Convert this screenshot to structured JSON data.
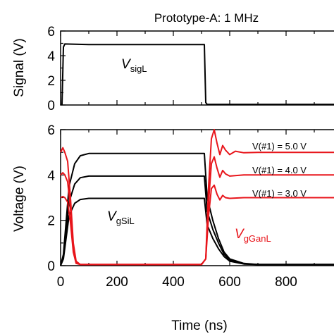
{
  "chart_data": [
    {
      "type": "line",
      "title": "Prototype-A: 1 MHz",
      "xlabel": "",
      "ylabel": "Signal (V)",
      "xlim": [
        0,
        1000
      ],
      "ylim": [
        0,
        6
      ],
      "yticks": [
        "0",
        "2",
        "4",
        "6"
      ],
      "xticks": [
        0,
        200,
        400,
        600,
        800,
        1000
      ],
      "series": [
        {
          "label_main": "V",
          "label_sub": "sigL",
          "color": "#000000",
          "points": [
            [
              0,
              0
            ],
            [
              5,
              0.05
            ],
            [
              10,
              4.7
            ],
            [
              15,
              4.95
            ],
            [
              100,
              4.9
            ],
            [
              200,
              4.9
            ],
            [
              300,
              4.9
            ],
            [
              400,
              4.9
            ],
            [
              500,
              4.9
            ],
            [
              510,
              4.9
            ],
            [
              515,
              0.2
            ],
            [
              520,
              0.05
            ],
            [
              600,
              0.05
            ],
            [
              700,
              0.05
            ],
            [
              800,
              0.05
            ],
            [
              900,
              0.05
            ],
            [
              1000,
              0.05
            ]
          ]
        }
      ]
    },
    {
      "type": "line",
      "title": "",
      "xlabel": "Time (ns)",
      "ylabel": "Voltage (V)",
      "xlim": [
        0,
        1000
      ],
      "ylim": [
        0,
        6
      ],
      "yticks": [
        "0",
        "2",
        "4",
        "6"
      ],
      "xticks": [
        "0",
        "200",
        "400",
        "600",
        "800",
        "10"
      ],
      "annotations": [
        "V(#1) = 5.0 V",
        "V(#1) = 4.0 V",
        "V(#1) = 3.0 V"
      ],
      "labels": [
        {
          "main": "V",
          "sub": "gSiL",
          "color": "#000000"
        },
        {
          "main": "V",
          "sub": "gGanL",
          "color": "#e8151b"
        }
      ],
      "series": [
        {
          "group": "gSiL",
          "color": "#000000",
          "points": [
            [
              0,
              0
            ],
            [
              10,
              0.5
            ],
            [
              30,
              3.5
            ],
            [
              50,
              4.5
            ],
            [
              70,
              4.85
            ],
            [
              100,
              4.95
            ],
            [
              200,
              4.95
            ],
            [
              300,
              4.95
            ],
            [
              400,
              4.95
            ],
            [
              510,
              4.95
            ],
            [
              520,
              3.0
            ],
            [
              540,
              2.0
            ],
            [
              560,
              1.2
            ],
            [
              580,
              0.6
            ],
            [
              600,
              0.3
            ],
            [
              650,
              0.1
            ],
            [
              700,
              0.05
            ],
            [
              1000,
              0.05
            ]
          ]
        },
        {
          "group": "gSiL",
          "color": "#000000",
          "points": [
            [
              0,
              0
            ],
            [
              10,
              0.4
            ],
            [
              30,
              2.8
            ],
            [
              50,
              3.6
            ],
            [
              70,
              3.88
            ],
            [
              100,
              3.95
            ],
            [
              200,
              3.95
            ],
            [
              300,
              3.95
            ],
            [
              400,
              3.95
            ],
            [
              510,
              3.95
            ],
            [
              520,
              2.4
            ],
            [
              540,
              1.6
            ],
            [
              560,
              1.0
            ],
            [
              580,
              0.5
            ],
            [
              600,
              0.25
            ],
            [
              650,
              0.08
            ],
            [
              700,
              0.05
            ],
            [
              1000,
              0.05
            ]
          ]
        },
        {
          "group": "gSiL",
          "color": "#000000",
          "points": [
            [
              0,
              0
            ],
            [
              10,
              0.3
            ],
            [
              30,
              2.2
            ],
            [
              50,
              2.75
            ],
            [
              70,
              2.92
            ],
            [
              100,
              2.97
            ],
            [
              200,
              2.97
            ],
            [
              300,
              2.97
            ],
            [
              400,
              2.97
            ],
            [
              510,
              2.97
            ],
            [
              520,
              1.8
            ],
            [
              540,
              1.2
            ],
            [
              560,
              0.75
            ],
            [
              580,
              0.4
            ],
            [
              600,
              0.2
            ],
            [
              650,
              0.07
            ],
            [
              700,
              0.05
            ],
            [
              1000,
              0.05
            ]
          ]
        },
        {
          "group": "gGanL",
          "color": "#e8151b",
          "points": [
            [
              0,
              5.0
            ],
            [
              8,
              5.2
            ],
            [
              15,
              5.0
            ],
            [
              25,
              4.6
            ],
            [
              35,
              3.0
            ],
            [
              45,
              1.0
            ],
            [
              55,
              0.2
            ],
            [
              70,
              0.05
            ],
            [
              200,
              0.05
            ],
            [
              400,
              0.05
            ],
            [
              500,
              0.05
            ],
            [
              515,
              0.3
            ],
            [
              525,
              3.5
            ],
            [
              535,
              5.6
            ],
            [
              545,
              6.0
            ],
            [
              555,
              5.4
            ],
            [
              565,
              4.9
            ],
            [
              575,
              5.3
            ],
            [
              585,
              5.1
            ],
            [
              600,
              4.9
            ],
            [
              620,
              5.05
            ],
            [
              650,
              4.98
            ],
            [
              700,
              5.0
            ],
            [
              800,
              5.0
            ],
            [
              900,
              5.0
            ],
            [
              1000,
              5.0
            ]
          ]
        },
        {
          "group": "gGanL",
          "color": "#e8151b",
          "points": [
            [
              0,
              4.0
            ],
            [
              8,
              4.1
            ],
            [
              15,
              4.0
            ],
            [
              25,
              3.7
            ],
            [
              35,
              2.5
            ],
            [
              45,
              0.8
            ],
            [
              55,
              0.15
            ],
            [
              70,
              0.05
            ],
            [
              200,
              0.05
            ],
            [
              400,
              0.05
            ],
            [
              500,
              0.05
            ],
            [
              515,
              0.3
            ],
            [
              525,
              2.8
            ],
            [
              535,
              4.5
            ],
            [
              545,
              4.8
            ],
            [
              555,
              4.3
            ],
            [
              565,
              3.9
            ],
            [
              575,
              4.2
            ],
            [
              585,
              4.05
            ],
            [
              600,
              3.95
            ],
            [
              650,
              4.0
            ],
            [
              1000,
              4.0
            ]
          ]
        },
        {
          "group": "gGanL",
          "color": "#e8151b",
          "points": [
            [
              0,
              3.0
            ],
            [
              8,
              3.05
            ],
            [
              15,
              3.0
            ],
            [
              25,
              2.8
            ],
            [
              35,
              1.9
            ],
            [
              45,
              0.6
            ],
            [
              55,
              0.1
            ],
            [
              70,
              0.05
            ],
            [
              200,
              0.05
            ],
            [
              400,
              0.05
            ],
            [
              500,
              0.05
            ],
            [
              515,
              0.3
            ],
            [
              525,
              2.2
            ],
            [
              535,
              3.4
            ],
            [
              545,
              3.55
            ],
            [
              555,
              3.15
            ],
            [
              565,
              2.9
            ],
            [
              575,
              3.1
            ],
            [
              585,
              3.0
            ],
            [
              600,
              2.97
            ],
            [
              650,
              3.0
            ],
            [
              1000,
              3.0
            ]
          ]
        }
      ]
    }
  ]
}
